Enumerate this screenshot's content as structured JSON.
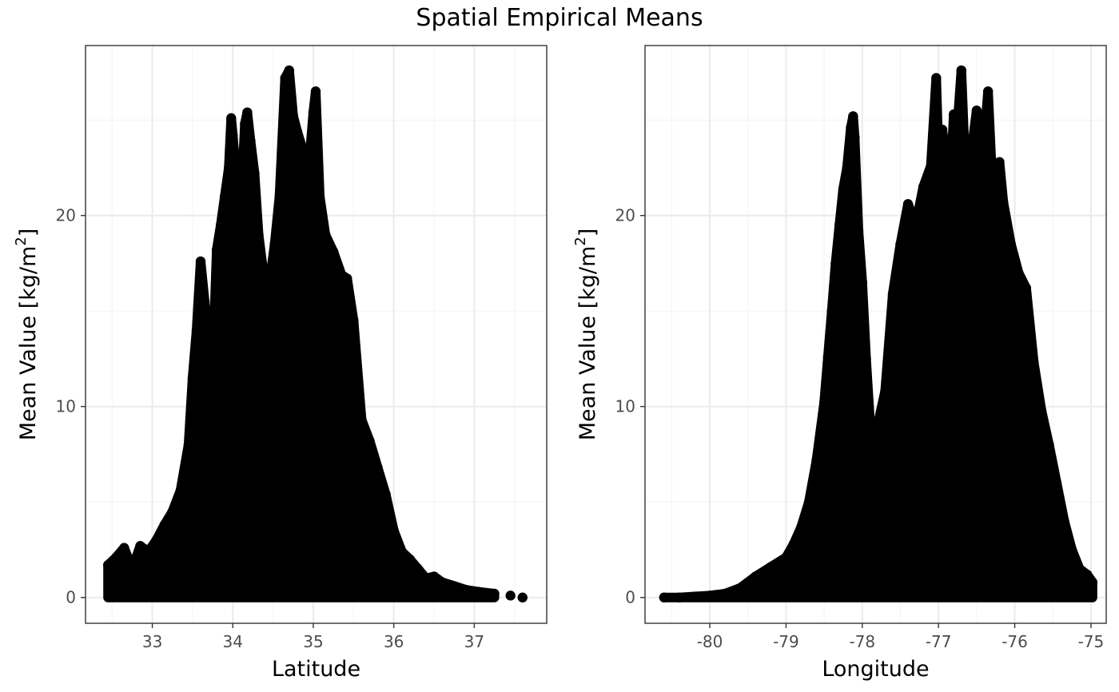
{
  "figure_title": "Spatial Empirical Means",
  "point_color": "#000000",
  "chart_data": [
    {
      "type": "scatter",
      "name": "latitude-panel",
      "xlabel": "Latitude",
      "ylabel_main": "Mean Value [kg/m",
      "ylabel_sup": "2",
      "ylabel_end": "]",
      "xlim": [
        32.17,
        37.9
      ],
      "ylim": [
        -1.35,
        28.9
      ],
      "xticks": [
        33,
        34,
        35,
        36,
        37
      ],
      "yticks": [
        0,
        10,
        20
      ],
      "grid": true,
      "legend": "none",
      "points": [
        [
          32.45,
          1.7
        ],
        [
          32.55,
          2.1
        ],
        [
          32.65,
          2.6
        ],
        [
          32.75,
          1.5
        ],
        [
          32.85,
          2.7
        ],
        [
          32.95,
          2.4
        ],
        [
          33.05,
          3.0
        ],
        [
          33.15,
          3.8
        ],
        [
          33.25,
          4.5
        ],
        [
          33.35,
          5.6
        ],
        [
          33.45,
          8.0
        ],
        [
          33.5,
          11.5
        ],
        [
          33.55,
          14.0
        ],
        [
          33.6,
          17.6
        ],
        [
          33.65,
          15.5
        ],
        [
          33.7,
          13.4
        ],
        [
          33.75,
          12.0
        ],
        [
          33.8,
          18.2
        ],
        [
          33.85,
          19.5
        ],
        [
          33.9,
          21.0
        ],
        [
          33.95,
          22.5
        ],
        [
          33.98,
          25.1
        ],
        [
          34.0,
          24.2
        ],
        [
          34.05,
          21.6
        ],
        [
          34.1,
          20.3
        ],
        [
          34.15,
          24.8
        ],
        [
          34.18,
          25.4
        ],
        [
          34.22,
          23.9
        ],
        [
          34.27,
          22.2
        ],
        [
          34.32,
          19.0
        ],
        [
          34.38,
          17.0
        ],
        [
          34.45,
          16.3
        ],
        [
          34.52,
          18.5
        ],
        [
          34.58,
          21.0
        ],
        [
          34.65,
          27.2
        ],
        [
          34.7,
          27.6
        ],
        [
          34.75,
          25.2
        ],
        [
          34.8,
          24.4
        ],
        [
          34.88,
          23.3
        ],
        [
          34.95,
          22.8
        ],
        [
          35.0,
          25.4
        ],
        [
          35.03,
          26.5
        ],
        [
          35.08,
          21.0
        ],
        [
          35.15,
          19.0
        ],
        [
          35.25,
          18.1
        ],
        [
          35.35,
          16.9
        ],
        [
          35.42,
          16.7
        ],
        [
          35.5,
          14.5
        ],
        [
          35.6,
          9.3
        ],
        [
          35.7,
          8.2
        ],
        [
          35.8,
          6.8
        ],
        [
          35.9,
          5.4
        ],
        [
          36.0,
          3.5
        ],
        [
          36.1,
          2.4
        ],
        [
          36.2,
          2.0
        ],
        [
          36.3,
          1.5
        ],
        [
          36.4,
          1.0
        ],
        [
          36.5,
          1.1
        ],
        [
          36.6,
          0.8
        ],
        [
          36.75,
          0.6
        ],
        [
          36.9,
          0.4
        ],
        [
          37.05,
          0.3
        ],
        [
          37.25,
          0.2
        ],
        [
          37.45,
          0.1
        ],
        [
          37.6,
          0.0
        ],
        [
          33.9,
          6.0
        ],
        [
          33.85,
          8.0
        ],
        [
          34.0,
          10.1
        ],
        [
          34.1,
          12.3
        ],
        [
          34.3,
          8.4
        ],
        [
          34.5,
          4.1
        ],
        [
          34.6,
          11.4
        ],
        [
          34.75,
          9.5
        ],
        [
          34.9,
          14.4
        ],
        [
          35.1,
          7.9
        ],
        [
          35.25,
          5.6
        ],
        [
          35.4,
          6.3
        ],
        [
          35.55,
          3.1
        ],
        [
          33.75,
          6.8
        ],
        [
          34.2,
          14.8
        ],
        [
          34.4,
          13.2
        ],
        [
          35.0,
          11.8
        ],
        [
          34.6,
          6.5
        ]
      ]
    },
    {
      "type": "scatter",
      "name": "longitude-panel",
      "xlabel": "Longitude",
      "ylabel_main": "Mean Value [kg/m",
      "ylabel_sup": "2",
      "ylabel_end": "]",
      "xlim": [
        -80.85,
        -74.8
      ],
      "ylim": [
        -1.35,
        28.9
      ],
      "xticks": [
        -80,
        -79,
        -78,
        -77,
        -76,
        -75
      ],
      "yticks": [
        0,
        10,
        20
      ],
      "grid": true,
      "legend": "none",
      "points": [
        [
          -80.6,
          0.0
        ],
        [
          -80.4,
          0.0
        ],
        [
          -80.2,
          0.05
        ],
        [
          -80.0,
          0.1
        ],
        [
          -79.8,
          0.2
        ],
        [
          -79.6,
          0.5
        ],
        [
          -79.4,
          1.1
        ],
        [
          -79.2,
          1.6
        ],
        [
          -79.0,
          2.1
        ],
        [
          -78.9,
          2.8
        ],
        [
          -78.8,
          3.7
        ],
        [
          -78.7,
          5.0
        ],
        [
          -78.6,
          7.2
        ],
        [
          -78.5,
          10.2
        ],
        [
          -78.45,
          12.6
        ],
        [
          -78.4,
          15.0
        ],
        [
          -78.35,
          17.5
        ],
        [
          -78.3,
          19.5
        ],
        [
          -78.25,
          21.4
        ],
        [
          -78.2,
          22.5
        ],
        [
          -78.15,
          24.6
        ],
        [
          -78.12,
          25.2
        ],
        [
          -78.1,
          24.1
        ],
        [
          -78.05,
          19.2
        ],
        [
          -78.0,
          16.5
        ],
        [
          -77.95,
          12.5
        ],
        [
          -77.9,
          9.3
        ],
        [
          -77.8,
          9.0
        ],
        [
          -77.7,
          10.8
        ],
        [
          -77.6,
          15.9
        ],
        [
          -77.5,
          18.5
        ],
        [
          -77.4,
          20.6
        ],
        [
          -77.3,
          19.5
        ],
        [
          -77.2,
          21.5
        ],
        [
          -77.1,
          22.6
        ],
        [
          -77.03,
          27.2
        ],
        [
          -77.0,
          23.2
        ],
        [
          -76.95,
          24.5
        ],
        [
          -76.85,
          21.3
        ],
        [
          -76.8,
          25.3
        ],
        [
          -76.75,
          24.8
        ],
        [
          -76.7,
          27.6
        ],
        [
          -76.65,
          22.5
        ],
        [
          -76.55,
          23.9
        ],
        [
          -76.5,
          25.5
        ],
        [
          -76.45,
          25.0
        ],
        [
          -76.4,
          24.0
        ],
        [
          -76.35,
          26.5
        ],
        [
          -76.3,
          22.2
        ],
        [
          -76.2,
          22.8
        ],
        [
          -76.15,
          20.7
        ],
        [
          -76.05,
          18.5
        ],
        [
          -75.95,
          17.0
        ],
        [
          -75.85,
          16.2
        ],
        [
          -75.75,
          12.3
        ],
        [
          -75.65,
          9.8
        ],
        [
          -75.55,
          8.0
        ],
        [
          -75.45,
          6.0
        ],
        [
          -75.35,
          4.0
        ],
        [
          -75.25,
          2.5
        ],
        [
          -75.15,
          1.5
        ],
        [
          -75.05,
          1.2
        ],
        [
          -74.98,
          0.8
        ],
        [
          -77.65,
          8.4
        ],
        [
          -77.45,
          5.5
        ],
        [
          -77.35,
          13.0
        ],
        [
          -77.25,
          7.0
        ],
        [
          -77.15,
          11.5
        ],
        [
          -76.95,
          14.2
        ],
        [
          -76.6,
          6.9
        ],
        [
          -76.5,
          11.2
        ],
        [
          -76.35,
          9.3
        ],
        [
          -76.25,
          5.9
        ],
        [
          -76.1,
          13.8
        ],
        [
          -75.95,
          10.4
        ],
        [
          -75.8,
          7.5
        ],
        [
          -76.45,
          3.1
        ],
        [
          -77.55,
          14.5
        ],
        [
          -76.75,
          16.9
        ],
        [
          -77.05,
          9.2
        ],
        [
          -76.2,
          2.6
        ]
      ]
    }
  ]
}
